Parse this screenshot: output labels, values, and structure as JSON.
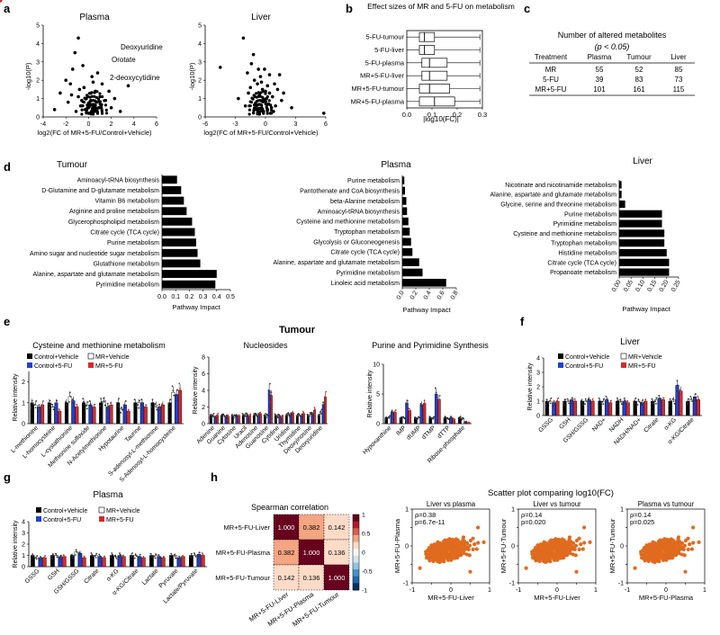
{
  "colors": {
    "black": "#000000",
    "blue": "#1f3fd6",
    "red": "#d42a2a",
    "orange": "#e06a1e",
    "grey": "#6b6b6b"
  },
  "panel_labels": {
    "a": "a",
    "b": "b",
    "c": "c",
    "d": "d",
    "e": "e",
    "f": "f",
    "g": "g",
    "h": "h"
  },
  "panel_a": {
    "plasma": {
      "title": "Plasma",
      "xlabel": "log2(FC of MR+5-FU/Control+Vehicle)",
      "ylabel": "-log10(P)",
      "x_ticks": [
        "-4",
        "-2",
        "0",
        "2",
        "4",
        "6"
      ],
      "y_ticks": [
        "0",
        "1",
        "2",
        "3",
        "4",
        "5"
      ],
      "xlim": [
        -4,
        6
      ],
      "ylim": [
        0,
        5
      ],
      "labels": [
        {
          "text": "Deoxyuridine",
          "x": 2.2,
          "y": 4.2
        },
        {
          "text": "Orotate",
          "x": 1.6,
          "y": 3.6
        },
        {
          "text": "2-deoxycytidine",
          "x": 1.7,
          "y": 2.5
        }
      ],
      "highlights": [
        {
          "x": 2.2,
          "y": 4.3
        },
        {
          "x": 1.5,
          "y": 3.6
        },
        {
          "x": 1.5,
          "y": 2.4
        }
      ],
      "points": [
        [
          -3,
          0.4
        ],
        [
          -1.5,
          1.2
        ],
        [
          -2,
          2.0
        ],
        [
          -1.2,
          3.5
        ],
        [
          -0.9,
          4.3
        ],
        [
          -0.5,
          2.8
        ],
        [
          -1.8,
          0.8
        ],
        [
          -0.8,
          1.5
        ],
        [
          0.2,
          1.3
        ],
        [
          0.4,
          1.9
        ],
        [
          0.8,
          2.4
        ],
        [
          1.2,
          1.8
        ],
        [
          2.0,
          0.5
        ],
        [
          2.8,
          0.3
        ],
        [
          3.5,
          1.7
        ],
        [
          -0.3,
          0.4
        ],
        [
          0.1,
          0.7
        ],
        [
          0.5,
          0.3
        ],
        [
          -0.6,
          0.9
        ],
        [
          1.0,
          1.1
        ],
        [
          -1.1,
          0.3
        ],
        [
          0.3,
          2.2
        ],
        [
          -0.2,
          1.0
        ],
        [
          0.7,
          0.8
        ],
        [
          1.5,
          0.9
        ],
        [
          -2.5,
          1.3
        ],
        [
          -1.4,
          2.6
        ],
        [
          0.0,
          0.2
        ],
        [
          -0.7,
          0.6
        ],
        [
          0.9,
          0.5
        ],
        [
          1.8,
          1.4
        ],
        [
          -0.4,
          1.6
        ],
        [
          0.6,
          1.4
        ],
        [
          -1.6,
          1.8
        ],
        [
          2.3,
          1.0
        ],
        [
          -0.1,
          0.5
        ],
        [
          0.2,
          0.9
        ],
        [
          1.1,
          0.6
        ],
        [
          -0.9,
          1.1
        ],
        [
          0.4,
          0.6
        ]
      ]
    },
    "liver": {
      "title": "Liver",
      "xlabel": "log2(FC of MR+5-FU/Control+Vehicle)",
      "ylabel": "-log10(P)",
      "x_ticks": [
        "-6",
        "-3",
        "0",
        "3",
        "6"
      ],
      "y_ticks": [
        "0",
        "1",
        "2",
        "3",
        "4",
        "5"
      ],
      "xlim": [
        -6,
        6
      ],
      "ylim": [
        0,
        5
      ],
      "points": [
        [
          -4.5,
          2.7
        ],
        [
          -2.2,
          4.3
        ],
        [
          -1.8,
          2.4
        ],
        [
          -1.5,
          1.6
        ],
        [
          -1.2,
          3.4
        ],
        [
          -0.8,
          1.8
        ],
        [
          -0.5,
          2.2
        ],
        [
          -0.3,
          0.9
        ],
        [
          0.0,
          1.4
        ],
        [
          0.2,
          0.4
        ],
        [
          0.4,
          2.3
        ],
        [
          0.7,
          1.1
        ],
        [
          1.0,
          0.6
        ],
        [
          1.4,
          2.3
        ],
        [
          1.8,
          1.3
        ],
        [
          2.6,
          0.5
        ],
        [
          5.8,
          0.2
        ],
        [
          -1.0,
          0.7
        ],
        [
          -0.2,
          0.3
        ],
        [
          0.5,
          0.2
        ],
        [
          -2.7,
          1.0
        ],
        [
          -0.6,
          1.2
        ],
        [
          0.9,
          1.8
        ],
        [
          -1.4,
          2.9
        ],
        [
          0.1,
          1.0
        ],
        [
          -0.9,
          0.4
        ],
        [
          0.3,
          0.7
        ],
        [
          1.2,
          1.5
        ],
        [
          -0.4,
          1.9
        ],
        [
          0.6,
          0.5
        ],
        [
          -1.7,
          1.3
        ],
        [
          0.8,
          0.3
        ],
        [
          -0.1,
          2.6
        ],
        [
          0.2,
          1.7
        ],
        [
          -0.7,
          2.6
        ],
        [
          1.6,
          0.9
        ],
        [
          -2.0,
          0.6
        ],
        [
          -1.1,
          2.0
        ],
        [
          0.4,
          1.3
        ],
        [
          -0.3,
          1.5
        ]
      ]
    }
  },
  "panel_b": {
    "title": "Effect sizes of MR and 5-FU on metabolism",
    "xlabel": "|log10(FC)|",
    "x_ticks": [
      "0.0",
      "0.1",
      "0.2",
      "0.3"
    ],
    "xlim": [
      0,
      0.3
    ],
    "rows": [
      {
        "label": "5-FU-tumour",
        "q1": 0.05,
        "median": 0.07,
        "q3": 0.11,
        "whisk_hi": 0.29
      },
      {
        "label": "5-FU-liver",
        "q1": 0.05,
        "median": 0.07,
        "q3": 0.11,
        "whisk_hi": 0.29
      },
      {
        "label": "5-FU-plasma",
        "q1": 0.06,
        "median": 0.09,
        "q3": 0.16,
        "whisk_hi": 0.29
      },
      {
        "label": "MR+5-FU-liver",
        "q1": 0.06,
        "median": 0.09,
        "q3": 0.16,
        "whisk_hi": 0.29
      },
      {
        "label": "MR+5-FU-tumour",
        "q1": 0.05,
        "median": 0.09,
        "q3": 0.17,
        "whisk_hi": 0.29
      },
      {
        "label": "MR+5-FU-plasma",
        "q1": 0.05,
        "median": 0.11,
        "q3": 0.19,
        "whisk_hi": 0.29
      }
    ]
  },
  "panel_c": {
    "title": "Number of altered metabolites",
    "subtitle": "(p < 0.05)",
    "headers": [
      "Treatment",
      "Plasma",
      "Tumour",
      "Liver"
    ],
    "rows": [
      [
        "MR",
        "55",
        "52",
        "85"
      ],
      [
        "5-FU",
        "39",
        "83",
        "73"
      ],
      [
        "MR+5-FU",
        "101",
        "161",
        "115"
      ]
    ]
  },
  "panel_d": {
    "xlabel": "Pathway Impact",
    "tumour": {
      "title": "Tumour",
      "x_ticks": [
        "0.0",
        "0.1",
        "0.2",
        "0.3",
        "0.4",
        "0.5"
      ],
      "xmax": 0.5,
      "bars": [
        [
          "Aminoacyl-tRNA biosynthesis",
          0.11
        ],
        [
          "D-Glutamine and D-glutamate metabolism",
          0.14
        ],
        [
          "Vitamin B6 metabolism",
          0.16
        ],
        [
          "Arginine and proline metabolism",
          0.18
        ],
        [
          "Glycerophospholipid metabolism",
          0.22
        ],
        [
          "Citrate cycle (TCA cycle)",
          0.24
        ],
        [
          "Purine metabolism",
          0.25
        ],
        [
          "Amino sugar and nucleotide sugar metabolism",
          0.26
        ],
        [
          "Glutathione metabolism",
          0.28
        ],
        [
          "Alanine, aspartate and glutamate metabolism",
          0.4
        ],
        [
          "Pyrimidine metabolism",
          0.39
        ]
      ]
    },
    "plasma": {
      "title": "Plasma",
      "x_ticks": [
        "0.0",
        "0.2",
        "0.4",
        "0.6",
        "0.8"
      ],
      "xmax": 0.8,
      "bars": [
        [
          "Purine metabolism",
          0.03
        ],
        [
          "Pantothenate and CoA biosynthesis",
          0.04
        ],
        [
          "beta-Alanine metabolism",
          0.06
        ],
        [
          "Aminoacyl-tRNA biosynthesis",
          0.07
        ],
        [
          "Cysteine and methionine metabolism",
          0.09
        ],
        [
          "Tryptophan metabolism",
          0.11
        ],
        [
          "Glycolysis or Gluconeogenesis",
          0.13
        ],
        [
          "Citrate cycle (TCA cycle)",
          0.15
        ],
        [
          "Alanine, aspartate and glutamate metabolism",
          0.25
        ],
        [
          "Pyrimidine metabolism",
          0.3
        ],
        [
          "Linoleic acid metabolism",
          0.65
        ]
      ]
    },
    "liver": {
      "title": "Liver",
      "x_ticks": [
        "0.00",
        "0.05",
        "0.10",
        "0.15",
        "0.20",
        "0.25"
      ],
      "xmax": 0.25,
      "bars": [
        [
          "Nicotinate and nicotinamide metabolism",
          0.01
        ],
        [
          "Alanine, aspartate and glutamate metabolism",
          0.01
        ],
        [
          "Glycine, serine and threonine metabolism",
          0.025
        ],
        [
          "Purine metabolism",
          0.18
        ],
        [
          "Pyrimidine metabolism",
          0.18
        ],
        [
          "Cysteine and methionine metabolism",
          0.19
        ],
        [
          "Tryptophan metabolism",
          0.19
        ],
        [
          "Histidine metabolism",
          0.2
        ],
        [
          "Citrate cycle (TCA cycle)",
          0.21
        ],
        [
          "Propanoate metabolism",
          0.21
        ]
      ]
    }
  },
  "legend": {
    "cv": "Control+Vehicle",
    "mrv": "MR+Vehicle",
    "c5": "Control+5-FU",
    "mr5": "MR+5-FU"
  },
  "panel_e": {
    "main_title": "Tumour",
    "ylabel": "Relative intensity",
    "cys": {
      "title": "Cysteine and methionine metabolism",
      "y_ticks": [
        "0",
        "1",
        "2"
      ],
      "ymax": 2.5,
      "labels": [
        "L-methionine",
        "L-homocysteine",
        "L-cystathionine",
        "Methionine sulfoxide",
        "N-Acetylmethionine",
        "Hypotaurine",
        "Taurine",
        "S-adenosyl-L-methionine",
        "S-Adenosyl-L-homocysteine"
      ],
      "values": [
        [
          1.0,
          0.9,
          0.8,
          0.9
        ],
        [
          1.0,
          0.8,
          1.0,
          0.6
        ],
        [
          1.0,
          1.3,
          1.1,
          0.8
        ],
        [
          1.0,
          0.9,
          0.9,
          0.8
        ],
        [
          1.0,
          1.1,
          0.8,
          0.9
        ],
        [
          1.0,
          0.7,
          0.9,
          0.6
        ],
        [
          1.0,
          1.0,
          1.0,
          0.8
        ],
        [
          1.0,
          0.9,
          0.8,
          0.9
        ],
        [
          1.0,
          1.5,
          1.4,
          1.6
        ]
      ]
    },
    "nuc": {
      "title": "Nucleosides",
      "y_ticks": [
        "0",
        "2",
        "4",
        "6",
        "8"
      ],
      "ymax": 8,
      "labels": [
        "Adenine",
        "Guanine",
        "Cytosine",
        "Uracil",
        "Adenosine",
        "Guanosine",
        "Cytidine",
        "Uridine",
        "Thymidine",
        "Deoxyinosine",
        "Deoxyuridine"
      ],
      "values": [
        [
          1.0,
          1.0,
          0.8,
          1.0
        ],
        [
          1.0,
          1.0,
          0.9,
          0.9
        ],
        [
          1.0,
          0.9,
          1.0,
          0.9
        ],
        [
          1.0,
          1.1,
          1.0,
          1.0
        ],
        [
          1.0,
          1.1,
          1.0,
          1.2
        ],
        [
          1.0,
          1.0,
          4.0,
          3.4
        ],
        [
          1.0,
          1.0,
          0.9,
          0.9
        ],
        [
          1.0,
          1.2,
          1.1,
          1.3
        ],
        [
          1.0,
          1.0,
          1.0,
          1.2
        ],
        [
          1.0,
          1.1,
          1.2,
          1.6
        ],
        [
          1.0,
          1.4,
          2.3,
          3.2
        ]
      ]
    },
    "pur": {
      "title": "Purine and Pyrimidine Synthesis",
      "y_ticks": [
        "0",
        "5",
        "10"
      ],
      "ymax": 10,
      "labels": [
        "Hypoxanthine",
        "IMP",
        "dUMP",
        "dTMP",
        "dTTP",
        "Ribose-phosphate"
      ],
      "values": [
        [
          1.0,
          1.1,
          2.0,
          1.9
        ],
        [
          1.0,
          1.0,
          3.5,
          2.2
        ],
        [
          1.0,
          1.0,
          3.2,
          3.4
        ],
        [
          1.0,
          1.0,
          5.0,
          4.1
        ],
        [
          1.0,
          0.9,
          1.0,
          0.8
        ],
        [
          1.0,
          0.9,
          0.3,
          0.2
        ]
      ]
    }
  },
  "panel_f": {
    "title": "Liver",
    "ylabel": "Relative intensity",
    "y_ticks": [
      "0",
      "1",
      "2",
      "3",
      "4"
    ],
    "ymax": 4,
    "labels": [
      "GSSG",
      "GSH",
      "GSH/GSSG",
      "NAD+",
      "NADH",
      "NADH/NAD+",
      "Citrate",
      "α-KG",
      "α-KG/Citrate"
    ],
    "values": [
      [
        1.0,
        1.0,
        0.9,
        1.0
      ],
      [
        1.0,
        1.0,
        1.1,
        1.0
      ],
      [
        1.0,
        1.0,
        1.1,
        1.0
      ],
      [
        1.0,
        1.0,
        1.1,
        0.9
      ],
      [
        1.0,
        1.0,
        1.0,
        0.9
      ],
      [
        1.0,
        1.0,
        0.9,
        1.0
      ],
      [
        1.0,
        1.1,
        1.2,
        1.1
      ],
      [
        1.0,
        1.1,
        2.1,
        1.7
      ],
      [
        1.0,
        1.1,
        1.3,
        1.1
      ]
    ]
  },
  "panel_g": {
    "title": "Plasma",
    "ylabel": "Relative intensity",
    "y_ticks": [
      "0",
      "1",
      "2",
      "3",
      "4"
    ],
    "ymax": 4,
    "labels": [
      "GSSG",
      "GSH",
      "GSH/GSSG",
      "Citrate",
      "α-KG",
      "α-KG/Citrate",
      "Lactate",
      "Pyruvate",
      "Lactate/Pyruvate"
    ],
    "values": [
      [
        1.0,
        0.8,
        0.8,
        0.8
      ],
      [
        1.0,
        1.0,
        0.9,
        0.9
      ],
      [
        1.0,
        1.3,
        1.2,
        0.8
      ],
      [
        1.0,
        1.0,
        0.9,
        0.8
      ],
      [
        1.0,
        0.9,
        1.0,
        0.9
      ],
      [
        1.0,
        1.0,
        0.9,
        0.8
      ],
      [
        1.0,
        1.0,
        0.9,
        0.8
      ],
      [
        1.0,
        1.0,
        0.8,
        0.9
      ],
      [
        1.0,
        1.0,
        1.1,
        1.0
      ]
    ]
  },
  "panel_h": {
    "corr_title": "Spearman correlation",
    "row_labels": [
      "MR+5-FU-Liver",
      "MR+5-FU-Plasma",
      "MR+5-FU-Tumour"
    ],
    "col_labels": [
      "MR+5-FU-Liver",
      "MR+5-FU-Plasma",
      "MR+5-FU-Tumour"
    ],
    "matrix": [
      [
        "1.000",
        "0.382",
        "0.142"
      ],
      [
        "0.382",
        "1.000",
        "0.136"
      ],
      [
        "0.142",
        "0.136",
        "1.000"
      ]
    ],
    "matrix_num": [
      [
        1.0,
        0.382,
        0.142
      ],
      [
        0.382,
        1.0,
        0.136
      ],
      [
        0.142,
        0.136,
        1.0
      ]
    ],
    "colorbar_ticks": [
      "1",
      "0.5",
      "0",
      "-0.5",
      "-1"
    ],
    "scatter_title": "Scatter plot comparing log10(FC)",
    "scatters": [
      {
        "title": "Liver vs plasma",
        "rho": "ρ=0.38",
        "p": "p=6.7e-11",
        "xlabel": "MR+5-FU-Liver",
        "ylabel": "MR+5-FU-Plasma",
        "x_ticks": [
          "-1",
          "-0.5",
          "0",
          "0.5",
          "1"
        ],
        "y_ticks": [
          "-1",
          "-0.5",
          "0",
          "0.5",
          "1"
        ],
        "xlim": [
          -1,
          1
        ],
        "ylim": [
          -1,
          1
        ]
      },
      {
        "title": "Liver vs tumour",
        "rho": "ρ=0.14",
        "p": "p=0.020",
        "xlabel": "MR+5-FU-Liver",
        "ylabel": "MR+5-FU-Tumour",
        "x_ticks": [
          "-1",
          "-0.5",
          "0",
          "0.5",
          "1"
        ],
        "y_ticks": [
          "-1",
          "-0.5",
          "0",
          "0.5",
          "1"
        ],
        "xlim": [
          -1,
          1
        ],
        "ylim": [
          -1,
          1
        ]
      },
      {
        "title": "Plasma vs tumour",
        "rho": "ρ=0.14",
        "p": "p=0.025",
        "xlabel": "MR+5-FU-Plasma",
        "ylabel": "MR+5-FU-Tumour",
        "x_ticks": [
          "-1",
          "-0.5",
          "0",
          "0.5",
          "1"
        ],
        "y_ticks": [
          "-1",
          "-0.5",
          "0",
          "0.5",
          "1"
        ],
        "xlim": [
          -1,
          1
        ],
        "ylim": [
          -1,
          1
        ]
      }
    ]
  }
}
